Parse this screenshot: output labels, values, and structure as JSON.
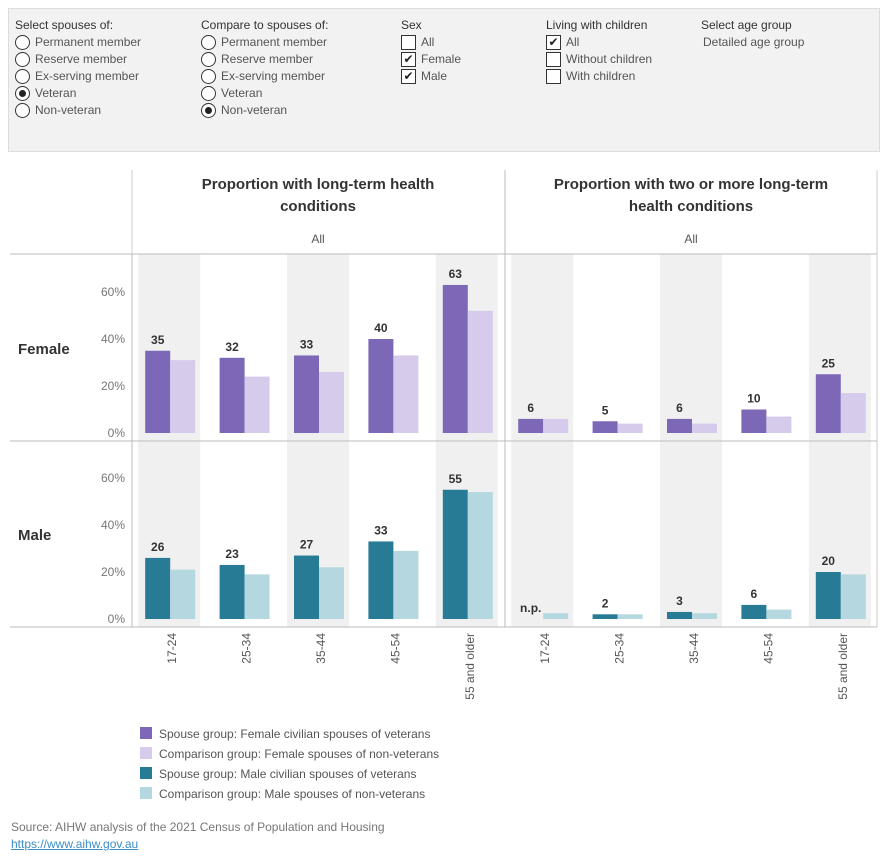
{
  "filters": {
    "spouses": {
      "title": "Select spouses of:",
      "options": [
        "Permanent member",
        "Reserve member",
        "Ex-serving member",
        "Veteran",
        "Non-veteran"
      ],
      "selected": 3
    },
    "compare": {
      "title": "Compare to spouses of:",
      "options": [
        "Permanent member",
        "Reserve member",
        "Ex-serving member",
        "Veteran",
        "Non-veteran"
      ],
      "selected": 4
    },
    "sex": {
      "title": "Sex",
      "options": [
        {
          "label": "All",
          "checked": false
        },
        {
          "label": "Female",
          "checked": true
        },
        {
          "label": "Male",
          "checked": true
        }
      ]
    },
    "living": {
      "title": "Living with children",
      "options": [
        {
          "label": "All",
          "checked": true
        },
        {
          "label": "Without children",
          "checked": false
        },
        {
          "label": "With children",
          "checked": false
        }
      ]
    },
    "age": {
      "title": "Select age group",
      "value": "Detailed age group"
    }
  },
  "chart_data": {
    "type": "bar",
    "categories": [
      "17-24",
      "25-34",
      "35-44",
      "45-54",
      "55 and older"
    ],
    "column_sublabel": "All",
    "panels": [
      {
        "title": "Proportion with long-term health conditions"
      },
      {
        "title": "Proportion with two or more  long-term health conditions"
      }
    ],
    "row_labels": [
      "Female",
      "Male"
    ],
    "y_ticks": [
      "0%",
      "20%",
      "40%",
      "60%"
    ],
    "ylim": [
      0,
      70
    ],
    "colors": {
      "female_spouse": "#7d67b7",
      "female_comparison": "#d6cbea",
      "male_spouse": "#277b94",
      "male_comparison": "#b5d8e0"
    },
    "series": [
      {
        "panel": 0,
        "row": "Female",
        "name": "Spouse group: Female civilian spouses of veterans",
        "values": [
          35,
          32,
          33,
          40,
          63
        ],
        "labels": [
          "35",
          "32",
          "33",
          "40",
          "63"
        ]
      },
      {
        "panel": 0,
        "row": "Female",
        "name": "Comparison group: Female spouses of non-veterans",
        "values": [
          31,
          24,
          26,
          33,
          52
        ]
      },
      {
        "panel": 1,
        "row": "Female",
        "name": "Spouse group: Female civilian spouses of veterans",
        "values": [
          6,
          5,
          6,
          10,
          25
        ],
        "labels": [
          "6",
          "5",
          "6",
          "10",
          "25"
        ]
      },
      {
        "panel": 1,
        "row": "Female",
        "name": "Comparison group: Female spouses of non-veterans",
        "values": [
          6,
          4,
          4,
          7,
          17
        ]
      },
      {
        "panel": 0,
        "row": "Male",
        "name": "Spouse group: Male civilian spouses of veterans",
        "values": [
          26,
          23,
          27,
          33,
          55
        ],
        "labels": [
          "26",
          "23",
          "27",
          "33",
          "55"
        ]
      },
      {
        "panel": 0,
        "row": "Male",
        "name": "Comparison group: Male spouses of non-veterans",
        "values": [
          21,
          19,
          22,
          29,
          54
        ]
      },
      {
        "panel": 1,
        "row": "Male",
        "name": "Spouse group: Male civilian spouses of veterans",
        "values": [
          0,
          2,
          3,
          6,
          20
        ],
        "labels": [
          "n.p.",
          "2",
          "3",
          "6",
          "20"
        ]
      },
      {
        "panel": 1,
        "row": "Male",
        "name": "Comparison group: Male spouses of non-veterans",
        "values": [
          2.5,
          2,
          2.5,
          4,
          19
        ]
      }
    ]
  },
  "legend": [
    {
      "label": "Spouse group: Female civilian spouses of veterans",
      "color": "#7d67b7"
    },
    {
      "label": "Comparison group: Female spouses of non-veterans",
      "color": "#d6cbea"
    },
    {
      "label": "Spouse group: Male civilian spouses of veterans",
      "color": "#277b94"
    },
    {
      "label": "Comparison group: Male spouses of non-veterans",
      "color": "#b5d8e0"
    }
  ],
  "footer": {
    "source": "Source: AIHW analysis of the 2021 Census of Population and Housing",
    "link": "https://www.aihw.gov.au"
  }
}
